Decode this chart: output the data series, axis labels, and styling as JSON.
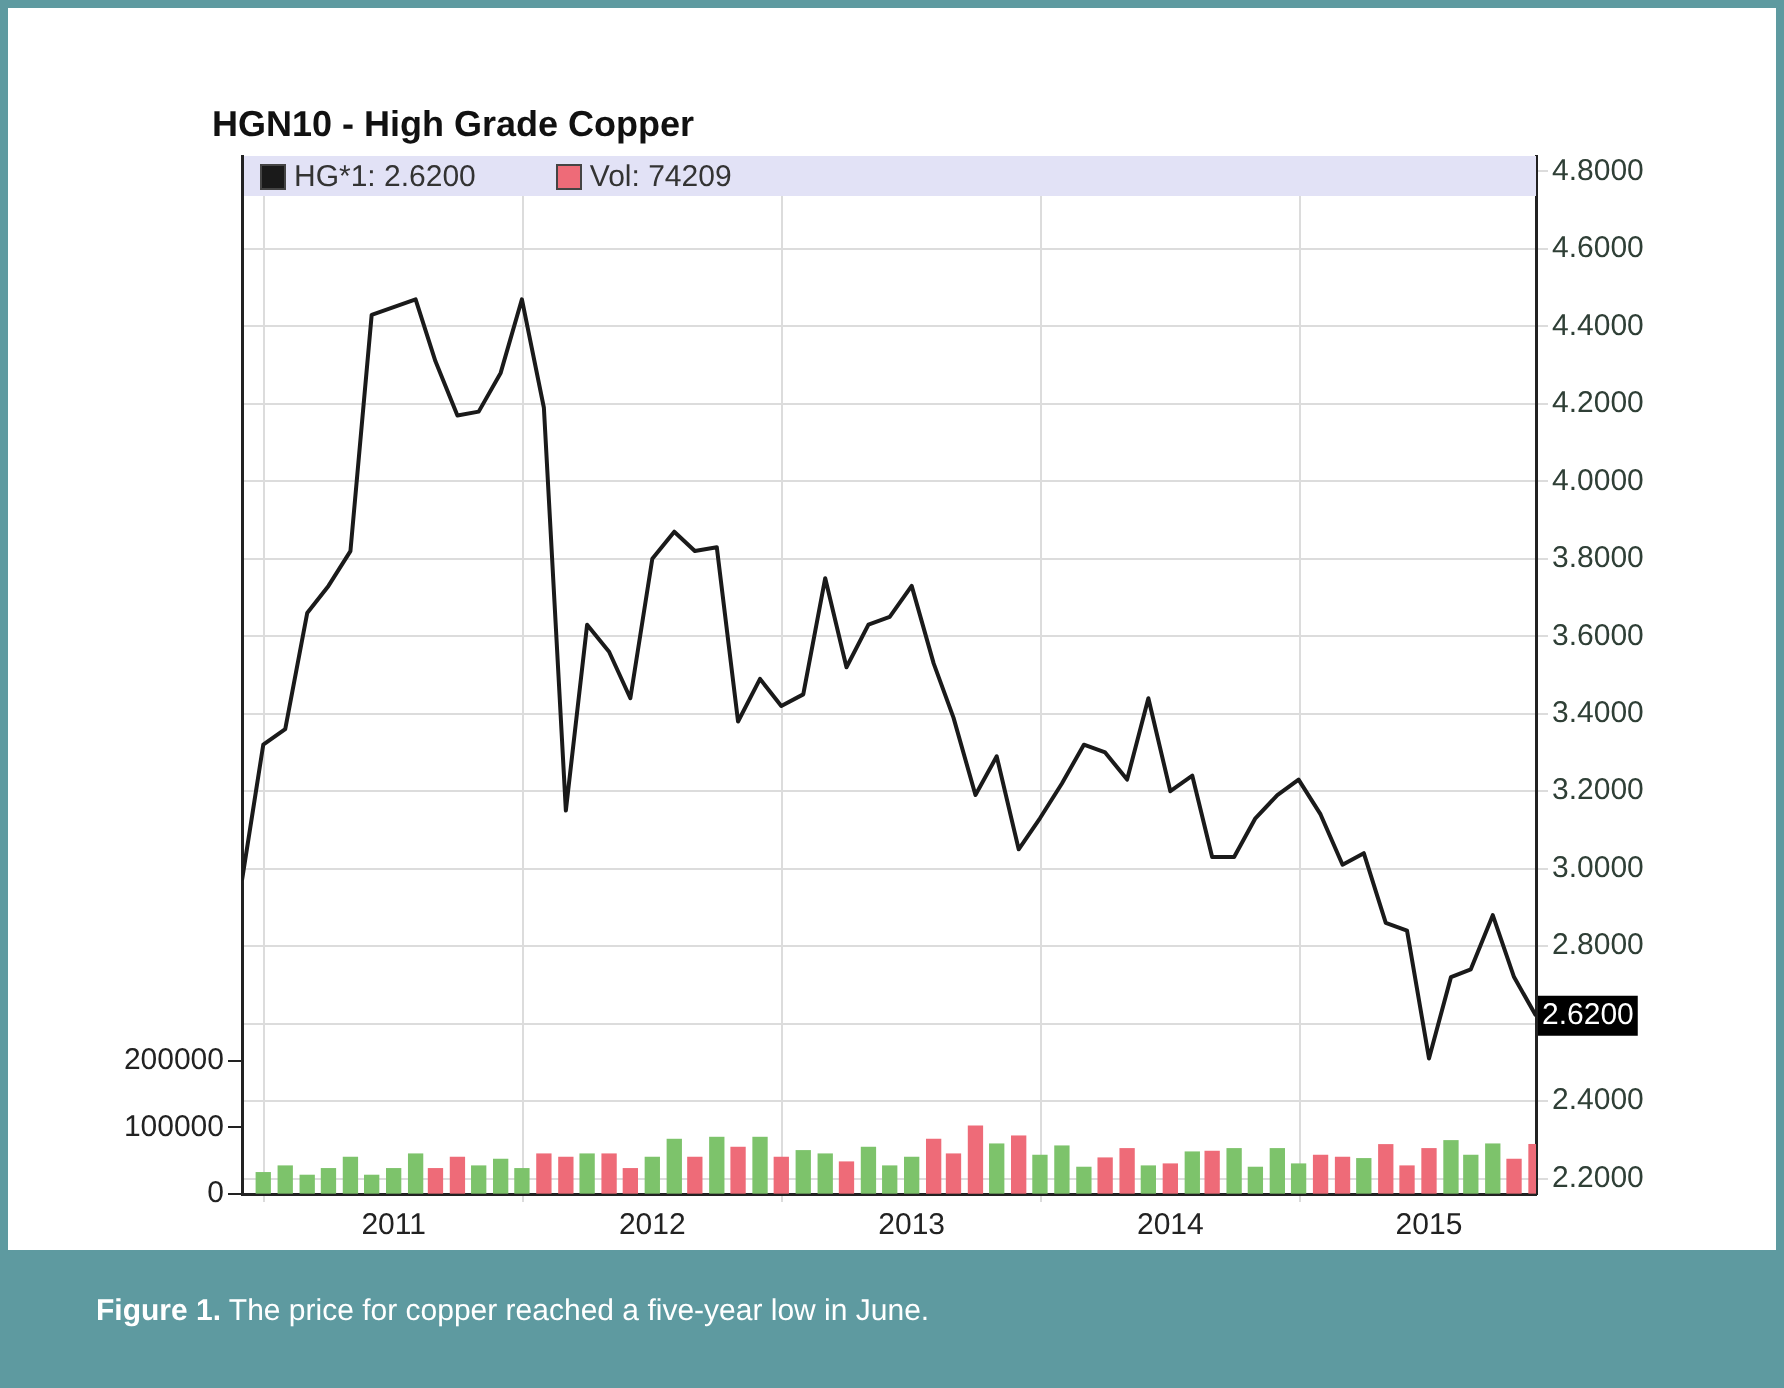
{
  "chart_data": {
    "type": "line",
    "title": "HGN10 - High Grade Copper",
    "x": [
      "2010-06",
      "2010-07",
      "2010-08",
      "2010-09",
      "2010-10",
      "2010-11",
      "2010-12",
      "2011-01",
      "2011-02",
      "2011-03",
      "2011-04",
      "2011-05",
      "2011-06",
      "2011-07",
      "2011-08",
      "2011-09",
      "2011-10",
      "2011-11",
      "2011-12",
      "2012-01",
      "2012-02",
      "2012-03",
      "2012-04",
      "2012-05",
      "2012-06",
      "2012-07",
      "2012-08",
      "2012-09",
      "2012-10",
      "2012-11",
      "2012-12",
      "2013-01",
      "2013-02",
      "2013-03",
      "2013-04",
      "2013-05",
      "2013-06",
      "2013-07",
      "2013-08",
      "2013-09",
      "2013-10",
      "2013-11",
      "2013-12",
      "2014-01",
      "2014-02",
      "2014-03",
      "2014-04",
      "2014-05",
      "2014-06",
      "2014-07",
      "2014-08",
      "2014-09",
      "2014-10",
      "2014-11",
      "2014-12",
      "2015-01",
      "2015-02",
      "2015-03",
      "2015-04",
      "2015-05",
      "2015-06"
    ],
    "series": [
      {
        "name": "HG*1: 2.6200",
        "color": "#1a1a1a",
        "values": [
          2.97,
          3.32,
          3.36,
          3.66,
          3.73,
          3.82,
          4.43,
          4.45,
          4.47,
          4.31,
          4.17,
          4.18,
          4.28,
          4.47,
          4.19,
          3.15,
          3.63,
          3.56,
          3.44,
          3.8,
          3.87,
          3.82,
          3.83,
          3.38,
          3.49,
          3.42,
          3.45,
          3.75,
          3.52,
          3.63,
          3.65,
          3.73,
          3.53,
          3.39,
          3.19,
          3.29,
          3.05,
          3.13,
          3.22,
          3.32,
          3.3,
          3.23,
          3.44,
          3.2,
          3.24,
          3.03,
          3.03,
          3.13,
          3.19,
          3.23,
          3.14,
          3.01,
          3.04,
          2.86,
          2.84,
          2.51,
          2.72,
          2.74,
          2.88,
          2.72,
          2.62
        ]
      },
      {
        "name": "Vol: 74209",
        "type": "bar",
        "axis": "y2",
        "color": "#ee6b78",
        "values": [
          null,
          32000,
          42000,
          28000,
          38000,
          55000,
          28000,
          38000,
          60000,
          38000,
          55000,
          42000,
          52000,
          38000,
          60000,
          55000,
          60000,
          60000,
          38000,
          55000,
          82000,
          55000,
          85000,
          70000,
          85000,
          55000,
          65000,
          60000,
          48000,
          70000,
          42000,
          55000,
          82000,
          60000,
          102000,
          75000,
          87000,
          58000,
          72000,
          40000,
          54000,
          68000,
          42000,
          45000,
          63000,
          64000,
          68000,
          40000,
          68000,
          45000,
          58000,
          55000,
          53000,
          74000,
          42000,
          68000,
          80000,
          58000,
          75000,
          52000,
          74209
        ],
        "colors": [
          null,
          "#7dc36b",
          "#7dc36b",
          "#7dc36b",
          "#7dc36b",
          "#7dc36b",
          "#7dc36b",
          "#7dc36b",
          "#7dc36b",
          "#ee6b78",
          "#ee6b78",
          "#7dc36b",
          "#7dc36b",
          "#7dc36b",
          "#ee6b78",
          "#ee6b78",
          "#7dc36b",
          "#ee6b78",
          "#ee6b78",
          "#7dc36b",
          "#7dc36b",
          "#ee6b78",
          "#7dc36b",
          "#ee6b78",
          "#7dc36b",
          "#ee6b78",
          "#7dc36b",
          "#7dc36b",
          "#ee6b78",
          "#7dc36b",
          "#7dc36b",
          "#7dc36b",
          "#ee6b78",
          "#ee6b78",
          "#ee6b78",
          "#7dc36b",
          "#ee6b78",
          "#7dc36b",
          "#7dc36b",
          "#7dc36b",
          "#ee6b78",
          "#ee6b78",
          "#7dc36b",
          "#ee6b78",
          "#7dc36b",
          "#ee6b78",
          "#7dc36b",
          "#7dc36b",
          "#7dc36b",
          "#7dc36b",
          "#ee6b78",
          "#ee6b78",
          "#7dc36b",
          "#ee6b78",
          "#ee6b78",
          "#ee6b78",
          "#7dc36b",
          "#7dc36b",
          "#7dc36b",
          "#ee6b78",
          "#ee6b78"
        ]
      }
    ],
    "xlim": [
      "2010-06",
      "2015-06"
    ],
    "xticks": [
      "2011",
      "2012",
      "2013",
      "2014",
      "2015"
    ],
    "ylim": [
      2.16,
      4.84
    ],
    "yticks": [
      {
        "value": 2.2,
        "label": "2.2000"
      },
      {
        "value": 2.4,
        "label": "2.4000"
      },
      {
        "value": 2.6,
        "label": null
      },
      {
        "value": 2.8,
        "label": "2.8000"
      },
      {
        "value": 3.0,
        "label": "3.0000"
      },
      {
        "value": 3.2,
        "label": "3.2000"
      },
      {
        "value": 3.4,
        "label": "3.4000"
      },
      {
        "value": 3.6,
        "label": "3.6000"
      },
      {
        "value": 3.8,
        "label": "3.8000"
      },
      {
        "value": 4.0,
        "label": "4.0000"
      },
      {
        "value": 4.2,
        "label": "4.2000"
      },
      {
        "value": 4.4,
        "label": "4.4000"
      },
      {
        "value": 4.6,
        "label": "4.6000"
      },
      {
        "value": 4.8,
        "label": "4.8000"
      }
    ],
    "y2lim": [
      0,
      1560000
    ],
    "y2ticks": [
      0,
      100000,
      200000
    ],
    "grid": true,
    "legend": "top left",
    "marker": "none",
    "line_style": "solid",
    "annotations": [
      {
        "text": "2.6200",
        "x": "2015-06",
        "y": 2.62
      },
      "Figure 1. The price for copper reached a five-year low in June."
    ]
  }
}
